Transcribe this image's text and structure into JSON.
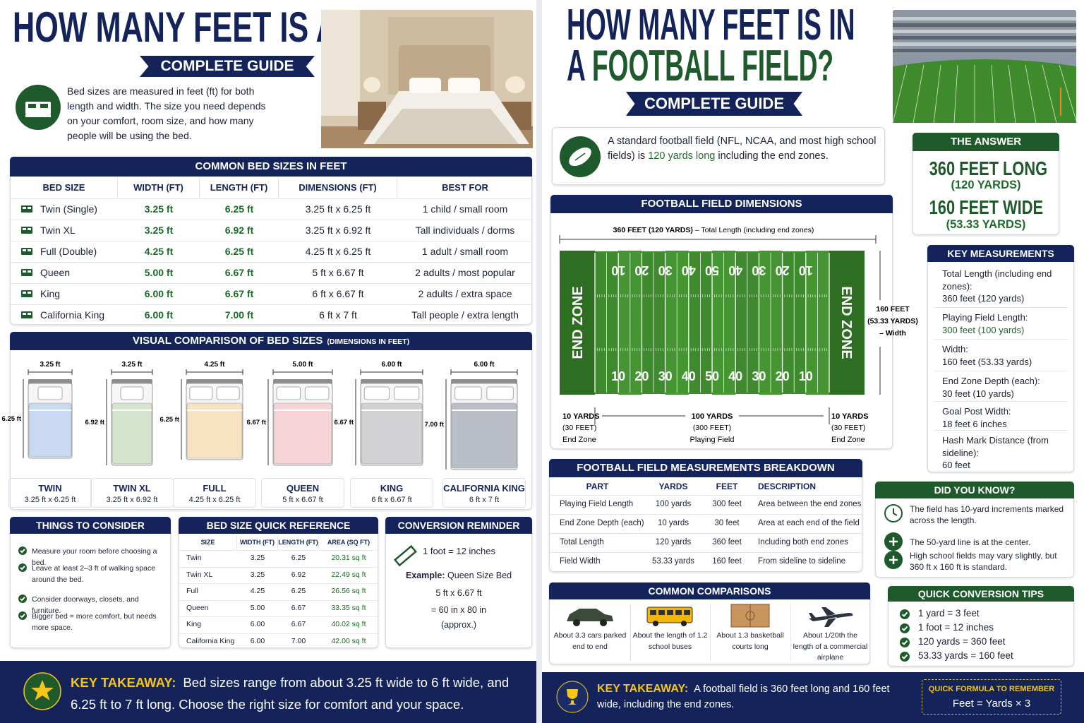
{
  "left": {
    "title": "HOW MANY FEET IS A BED?",
    "badge": "COMPLETE GUIDE",
    "intro": "Bed sizes are measured in feet (ft) for both length and width. The size you need depends on your comfort, room size, and how many people will be using the bed.",
    "sizes": {
      "title": "COMMON BED SIZES IN FEET",
      "headers": [
        "BED SIZE",
        "WIDTH (FT)",
        "LENGTH (FT)",
        "DIMENSIONS (FT)",
        "BEST FOR"
      ],
      "rows": [
        [
          "Twin (Single)",
          "3.25 ft",
          "6.25 ft",
          "3.25 ft x 6.25 ft",
          "1 child / small room"
        ],
        [
          "Twin XL",
          "3.25 ft",
          "6.92 ft",
          "3.25 ft x 6.92 ft",
          "Tall individuals / dorms"
        ],
        [
          "Full (Double)",
          "4.25 ft",
          "6.25 ft",
          "4.25 ft x 6.25 ft",
          "1 adult / small room"
        ],
        [
          "Queen",
          "5.00 ft",
          "6.67 ft",
          "5 ft x 6.67 ft",
          "2 adults / most popular"
        ],
        [
          "King",
          "6.00 ft",
          "6.67 ft",
          "6 ft x 6.67 ft",
          "2 adults / extra space"
        ],
        [
          "California King",
          "6.00 ft",
          "7.00 ft",
          "6 ft x 7 ft",
          "Tall people / extra length"
        ]
      ]
    },
    "visual": {
      "title": "VISUAL COMPARISON OF BED SIZES",
      "subtitle": "(DIMENSIONS IN FEET)",
      "beds": [
        {
          "width": "3.25 ft",
          "length": "6.25 ft",
          "name": "TWIN",
          "dims": "3.25 ft x 6.25 ft"
        },
        {
          "width": "3.25 ft",
          "length": "6.92 ft",
          "name": "TWIN XL",
          "dims": "3.25 ft x 6.92 ft"
        },
        {
          "width": "4.25 ft",
          "length": "6.25 ft",
          "name": "FULL",
          "dims": "4.25 ft x 6.25 ft"
        },
        {
          "width": "5.00 ft",
          "length": "6.67 ft",
          "name": "QUEEN",
          "dims": "5 ft x 6.67 ft"
        },
        {
          "width": "6.00 ft",
          "length": "6.67 ft",
          "name": "KING",
          "dims": "6 ft x 6.67 ft"
        },
        {
          "width": "6.00 ft",
          "length": "7.00 ft",
          "name": "CALIFORNIA KING",
          "dims": "6 ft x 7 ft"
        }
      ]
    },
    "consider": {
      "title": "THINGS TO CONSIDER",
      "items": [
        "Measure your room before choosing a bed.",
        "Leave at least 2–3 ft of walking space around the bed.",
        "Consider doorways, closets, and furniture.",
        "Bigger bed = more comfort, but needs more space."
      ]
    },
    "quick": {
      "title": "BED SIZE QUICK REFERENCE",
      "headers": [
        "SIZE",
        "WIDTH (FT)",
        "LENGTH (FT)",
        "AREA (SQ FT)"
      ],
      "rows": [
        [
          "Twin",
          "3.25",
          "6.25",
          "20.31 sq ft"
        ],
        [
          "Twin XL",
          "3.25",
          "6.92",
          "22.49 sq ft"
        ],
        [
          "Full",
          "4.25",
          "6.25",
          "26.56 sq ft"
        ],
        [
          "Queen",
          "5.00",
          "6.67",
          "33.35 sq ft"
        ],
        [
          "King",
          "6.00",
          "6.67",
          "40.02 sq ft"
        ],
        [
          "California King",
          "6.00",
          "7.00",
          "42.00 sq ft"
        ]
      ]
    },
    "conversion": {
      "title": "CONVERSION REMINDER",
      "rule": "1 foot = 12 inches",
      "example_label": "Example:",
      "example": "Queen Size Bed",
      "calc": [
        "5 ft x 6.67 ft",
        "= 60 in x 80 in",
        "(approx.)"
      ]
    },
    "takeaway": {
      "label": "KEY TAKEAWAY:",
      "text": "Bed sizes range from about 3.25 ft wide to 6 ft wide, and 6.25 ft to 7 ft long. Choose the right size for comfort and your space."
    }
  },
  "right": {
    "title1": "HOW MANY FEET IS IN",
    "title2a": "A ",
    "title2b": "FOOTBALL FIELD?",
    "badge": "COMPLETE GUIDE",
    "intro": [
      "A standard football field (NFL, NCAA, and most high school fields) is ",
      "120 yards long",
      " including the end zones."
    ],
    "answer": {
      "title": "THE ANSWER",
      "long": "360 FEET LONG",
      "long_sub": "(120 YARDS)",
      "wide": "160 FEET WIDE",
      "wide_sub": "(53.33 YARDS)"
    },
    "field": {
      "title": "FOOTBALL FIELD DIMENSIONS",
      "total": "360 FEET (120 YARDS)",
      "total_desc": " – Total Length (including end zones)",
      "end_zone": "END ZONE",
      "numbers": [
        "10",
        "20",
        "30",
        "40",
        "50",
        "40",
        "30",
        "20",
        "10"
      ],
      "width": [
        "160 FEET",
        "(53.33 YARDS)",
        "– Width"
      ],
      "segments": [
        {
          "yards": "10 YARDS",
          "feet": "(30 FEET)",
          "name": "End Zone"
        },
        {
          "yards": "100 YARDS",
          "feet": "(300 FEET)",
          "name": "Playing Field"
        },
        {
          "yards": "10 YARDS",
          "feet": "(30 FEET)",
          "name": "End Zone"
        }
      ]
    },
    "measures": {
      "title": "KEY MEASUREMENTS",
      "items": [
        {
          "label": "Total Length (including end zones):",
          "value": "360 feet (120 yards)"
        },
        {
          "label": "Playing Field Length:",
          "value": "300 feet (100 yards)"
        },
        {
          "label": "Width:",
          "value": "160 feet (53.33 yards)"
        },
        {
          "label": "End Zone Depth (each):",
          "value": "30 feet (10 yards)"
        },
        {
          "label": "Goal Post Width:",
          "value": "18 feet 6 inches"
        },
        {
          "label": "Hash Mark Distance (from sideline):",
          "value": "60 feet"
        }
      ]
    },
    "breakdown": {
      "title": "FOOTBALL FIELD MEASUREMENTS BREAKDOWN",
      "headers": [
        "PART",
        "YARDS",
        "FEET",
        "DESCRIPTION"
      ],
      "rows": [
        [
          "Playing Field Length",
          "100 yards",
          "300 feet",
          "Area between the end zones"
        ],
        [
          "End Zone Depth (each)",
          "10 yards",
          "30 feet",
          "Area at each end of the field"
        ],
        [
          "Total Length",
          "120 yards",
          "360 feet",
          "Including both end zones"
        ],
        [
          "Field Width",
          "53.33 yards",
          "160 feet",
          "From sideline to sideline"
        ]
      ]
    },
    "facts": {
      "title": "DID YOU KNOW?",
      "items": [
        "The field has 10-yard increments marked across the length.",
        "The 50-yard line is at the center.",
        "High school fields may vary slightly, but 360 ft x 160 ft is standard."
      ]
    },
    "compare": {
      "title": "COMMON COMPARISONS",
      "items": [
        "About 3.3 cars parked end to end",
        "About the length of 1.2 school buses",
        "About 1.3 basketball courts long",
        "About 1/20th the length of a commercial airplane"
      ]
    },
    "tips": {
      "title": "QUICK CONVERSION TIPS",
      "items": [
        "1 yard = 3 feet",
        "1 foot = 12 inches",
        "120 yards = 360 feet",
        "53.33 yards = 160 feet"
      ]
    },
    "takeaway": {
      "label": "KEY TAKEAWAY:",
      "text": "A football field is 360 feet long and 160 feet wide, including the end zones.",
      "formula_title": "QUICK FORMULA TO REMEMBER",
      "formula": "Feet = Yards × 3"
    }
  }
}
